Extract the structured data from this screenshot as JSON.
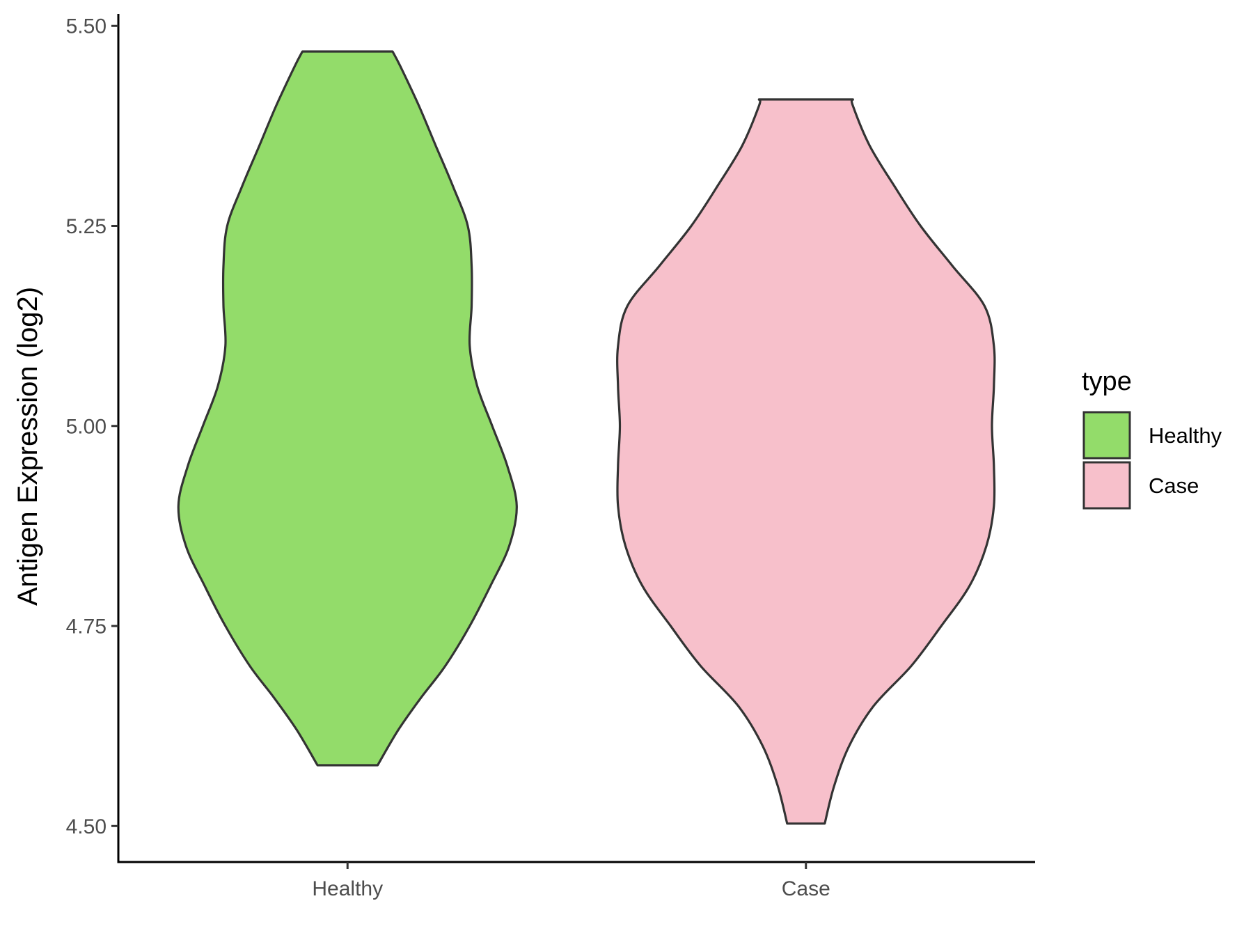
{
  "chart_data": {
    "type": "violin",
    "title": "",
    "xlabel": "",
    "ylabel": "Antigen Expression (log2)",
    "ylim": [
      4.455,
      5.515
    ],
    "yticks": [
      4.5,
      4.75,
      5.0,
      5.25,
      5.5
    ],
    "ytick_labels": [
      "4.50",
      "4.75",
      "5.00",
      "5.25",
      "5.50"
    ],
    "categories": [
      "Healthy",
      "Case"
    ],
    "grid": false,
    "legend": {
      "title": "type",
      "placement": "right",
      "items": [
        "Healthy",
        "Case"
      ]
    },
    "series": [
      {
        "name": "Healthy",
        "color": "#93DC6A",
        "outline": "#333333",
        "y_min": 4.576,
        "y_max": 5.468,
        "density_profile": [
          [
            4.576,
            0.16
          ],
          [
            4.62,
            0.27
          ],
          [
            4.66,
            0.39
          ],
          [
            4.7,
            0.52
          ],
          [
            4.75,
            0.65
          ],
          [
            4.8,
            0.76
          ],
          [
            4.85,
            0.86
          ],
          [
            4.9,
            0.9
          ],
          [
            4.95,
            0.85
          ],
          [
            5.0,
            0.77
          ],
          [
            5.05,
            0.69
          ],
          [
            5.1,
            0.65
          ],
          [
            5.15,
            0.66
          ],
          [
            5.2,
            0.66
          ],
          [
            5.25,
            0.64
          ],
          [
            5.3,
            0.56
          ],
          [
            5.35,
            0.47
          ],
          [
            5.4,
            0.38
          ],
          [
            5.45,
            0.28
          ],
          [
            5.468,
            0.24
          ]
        ]
      },
      {
        "name": "Case",
        "color": "#F7C0CB",
        "outline": "#333333",
        "y_min": 4.503,
        "y_max": 5.408,
        "density_profile": [
          [
            4.503,
            0.1
          ],
          [
            4.55,
            0.15
          ],
          [
            4.6,
            0.23
          ],
          [
            4.65,
            0.36
          ],
          [
            4.7,
            0.56
          ],
          [
            4.75,
            0.72
          ],
          [
            4.8,
            0.87
          ],
          [
            4.85,
            0.96
          ],
          [
            4.9,
            1.0
          ],
          [
            4.95,
            1.0
          ],
          [
            5.0,
            0.99
          ],
          [
            5.05,
            1.0
          ],
          [
            5.1,
            1.0
          ],
          [
            5.15,
            0.95
          ],
          [
            5.2,
            0.78
          ],
          [
            5.25,
            0.61
          ],
          [
            5.3,
            0.47
          ],
          [
            5.35,
            0.34
          ],
          [
            5.4,
            0.25
          ],
          [
            5.408,
            0.25
          ]
        ]
      }
    ]
  }
}
